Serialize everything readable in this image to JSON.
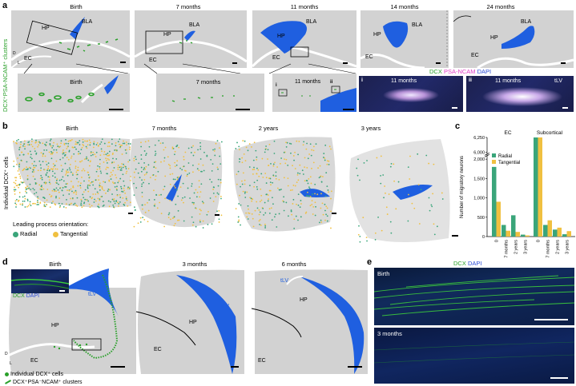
{
  "panel_a": {
    "letter": "a",
    "side_label": "DCX⁺PSA-NCAM⁺ clusters",
    "ages": [
      "Birth",
      "7 months",
      "11 months",
      "14 months",
      "24 months"
    ],
    "region_labels": {
      "bla": "BLA",
      "hp": "HP",
      "ec": "EC"
    },
    "axis_d": "D",
    "axis_l": "L",
    "inset_ages": [
      "Birth",
      "7 months",
      "11 months"
    ],
    "inset_markers": {
      "i": "i",
      "ii": "ii"
    },
    "micro_legend": {
      "dcx": "DCX",
      "psa": "PSA-NCAM",
      "dapi": "DAPI"
    },
    "micro_titles": [
      "11 months",
      "11 months"
    ],
    "micro_ids": [
      "i",
      "ii"
    ],
    "micro_tlv": "tLV",
    "colors": {
      "dcx": "#2aa02a",
      "psa": "#e040c8",
      "dapi": "#2a4bd6",
      "ventricle": "#1f5fe0",
      "tissue": "#cfcfcf"
    }
  },
  "panel_b": {
    "letter": "b",
    "side_label": "Individual DCX⁺ cells",
    "ages": [
      "Birth",
      "7 months",
      "2 years",
      "3 years"
    ],
    "legend_title": "Leading process orientation:",
    "legend_items": [
      "Radial",
      "Tangential"
    ],
    "colors": {
      "radial": "#3aa57a",
      "tangential": "#f0c040"
    }
  },
  "panel_c": {
    "letter": "c",
    "chart_data": {
      "type": "bar",
      "groups": [
        "EC",
        "Subcortical"
      ],
      "categories": [
        "0",
        "7 months",
        "2 years",
        "3 years"
      ],
      "series": [
        {
          "name": "Radial",
          "values_ec": [
            1800,
            300,
            550,
            50
          ],
          "values_subcortical": [
            6250,
            300,
            180,
            60
          ]
        },
        {
          "name": "Tangential",
          "values_ec": [
            900,
            150,
            120,
            30
          ],
          "values_subcortical": [
            6250,
            420,
            230,
            140
          ]
        }
      ],
      "ylabel": "Number of migratory neurons",
      "yticks": [
        "0",
        "500",
        "1,000",
        "1,500",
        "2,000",
        "6,000",
        "6,250"
      ],
      "axis_break": [
        2100,
        6000
      ],
      "legend": [
        "Radial",
        "Tangential"
      ]
    }
  },
  "panel_d": {
    "letter": "d",
    "ages": [
      "Birth",
      "3 months",
      "6 months"
    ],
    "region_labels": {
      "hp": "HP",
      "ec": "EC",
      "tlv": "tLV"
    },
    "inset_legend": {
      "dcx": "DCX",
      "dapi": "DAPI"
    },
    "legend_items": [
      "Individual DCX⁺ cells",
      "DCX⁺PSA⁻NCAM⁺ clusters"
    ]
  },
  "panel_e": {
    "letter": "e",
    "legend": {
      "dcx": "DCX",
      "dapi": "DAPI"
    },
    "ages": [
      "Birth",
      "3 months"
    ]
  }
}
